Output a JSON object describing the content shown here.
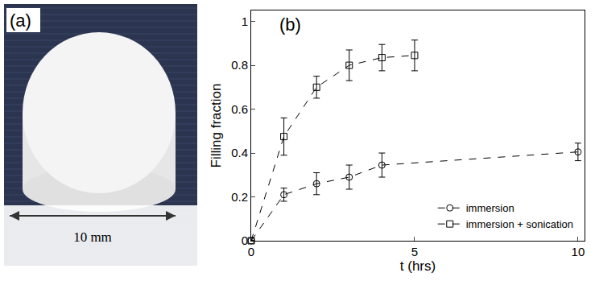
{
  "panel_a": {
    "label": "(a)",
    "scale_bar": "10 mm"
  },
  "chart_data": {
    "type": "scatter",
    "panel_label": "(b)",
    "x_label": "t (hrs)",
    "y_label": "Filling fraction",
    "xlim": [
      0,
      10.2
    ],
    "ylim": [
      0,
      1.05
    ],
    "xticks": [
      0,
      5,
      10
    ],
    "yticks": [
      0,
      0.2,
      0.4,
      0.6,
      0.8,
      1
    ],
    "grid": false,
    "legend": "lower right",
    "series": [
      {
        "name": "immersion",
        "color": "#000000",
        "marker": "circle",
        "line_style": "dash",
        "x": [
          0,
          1,
          2,
          3,
          4,
          10
        ],
        "values": [
          0,
          0.21,
          0.26,
          0.29,
          0.345,
          0.405
        ],
        "error": [
          0,
          0.03,
          0.05,
          0.055,
          0.055,
          0.04
        ]
      },
      {
        "name": "immersion + sonication",
        "color": "#000000",
        "marker": "square",
        "line_style": "dash",
        "x": [
          0,
          1,
          2,
          3,
          4,
          5
        ],
        "values": [
          0,
          0.475,
          0.7,
          0.8,
          0.835,
          0.845
        ],
        "error": [
          0,
          0.085,
          0.05,
          0.07,
          0.06,
          0.07
        ]
      }
    ]
  }
}
